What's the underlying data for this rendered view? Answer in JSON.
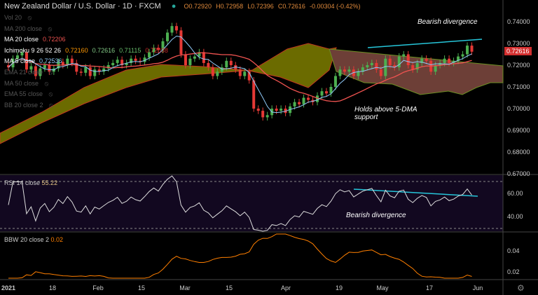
{
  "header": {
    "symbol": "New Zealand Dollar / U.S. Dollar · 1D · FXCM",
    "open": "O0.72920",
    "high": "H0.72958",
    "low": "L0.72396",
    "close": "C0.72616",
    "change": "-0.00304 (-0.42%)"
  },
  "legend": [
    {
      "label": "Vol 20",
      "value": "",
      "active": false
    },
    {
      "label": "MA 200 close",
      "value": "",
      "active": false
    },
    {
      "label": "MA 20 close",
      "value": "0.72206",
      "active": true,
      "color": "#ef5350"
    },
    {
      "label": "Ichimoku 9 26 52 26",
      "values": [
        "0.72160",
        "0.72616",
        "0.71115",
        "0.72038"
      ],
      "active": true
    },
    {
      "label": "MA 5 close",
      "value": "0.72536",
      "active": true,
      "color": "#90caf9"
    },
    {
      "label": "EMA 21 close",
      "value": "",
      "active": false
    },
    {
      "label": "MA 50 close",
      "value": "",
      "active": false
    },
    {
      "label": "EMA 55 close",
      "value": "",
      "active": false
    },
    {
      "label": "BB 20 close 2",
      "value": "",
      "active": false
    }
  ],
  "annotations": {
    "top": "Bearish divergence",
    "mid": "Holds above 5-DMA support",
    "rsi": "Bearish divergence"
  },
  "rsi_legend": {
    "label": "RSI 14 close",
    "value": "55.22"
  },
  "bbw_legend": {
    "label": "BBW 20 close 2",
    "value": "0.02"
  },
  "last_price": "0.72616",
  "colors": {
    "up": "#4caf50",
    "down": "#e53935",
    "ma20": "#ef5350",
    "ma5": "#90caf9",
    "cloud": "#6b6b00",
    "cloud_bear": "#6d3f37",
    "trendline": "#26c6da",
    "rsi_bg": "#120820",
    "bbw": "#ff7f00"
  },
  "chart_data": [
    {
      "type": "candlestick",
      "title": "New Zealand Dollar / U.S. Dollar · 1D · FXCM",
      "x_ticks": [
        "2021",
        "18",
        "Feb",
        "15",
        "Mar",
        "15",
        "Apr",
        "19",
        "May",
        "17",
        "Jun"
      ],
      "y_ticks": [
        "0.74000",
        "0.73000",
        "0.72000",
        "0.71000",
        "0.70000",
        "0.69000",
        "0.68000",
        "0.67000"
      ],
      "ylim": [
        0.667,
        0.751
      ],
      "close": [
        0.719,
        0.723,
        0.7245,
        0.726,
        0.718,
        0.7195,
        0.715,
        0.7185,
        0.72,
        0.717,
        0.7185,
        0.7215,
        0.72,
        0.723,
        0.721,
        0.717,
        0.7165,
        0.719,
        0.715,
        0.718,
        0.717,
        0.7185,
        0.72,
        0.721,
        0.7225,
        0.72,
        0.721,
        0.723,
        0.722,
        0.7215,
        0.7235,
        0.726,
        0.728,
        0.727,
        0.731,
        0.735,
        0.738,
        0.736,
        0.725,
        0.72,
        0.723,
        0.724,
        0.726,
        0.721,
        0.719,
        0.715,
        0.717,
        0.719,
        0.722,
        0.72,
        0.718,
        0.715,
        0.717,
        0.713,
        0.7,
        0.699,
        0.696,
        0.697,
        0.7,
        0.699,
        0.7,
        0.698,
        0.701,
        0.703,
        0.702,
        0.705,
        0.704,
        0.703,
        0.706,
        0.708,
        0.707,
        0.71,
        0.715,
        0.718,
        0.717,
        0.718,
        0.715,
        0.717,
        0.719,
        0.72,
        0.721,
        0.718,
        0.715,
        0.723,
        0.72,
        0.719,
        0.724,
        0.725,
        0.72,
        0.718,
        0.721,
        0.723,
        0.722,
        0.717,
        0.72,
        0.721,
        0.723,
        0.721,
        0.722,
        0.724,
        0.725,
        0.729,
        0.7262
      ]
    },
    {
      "type": "line",
      "title": "RSI 14 close",
      "y_ticks": [
        "60.00",
        "40.00"
      ],
      "bands": [
        70,
        30
      ]
    },
    {
      "type": "line",
      "title": "BBW 20 close 2",
      "y_ticks": [
        "0.04",
        "0.02"
      ]
    }
  ]
}
